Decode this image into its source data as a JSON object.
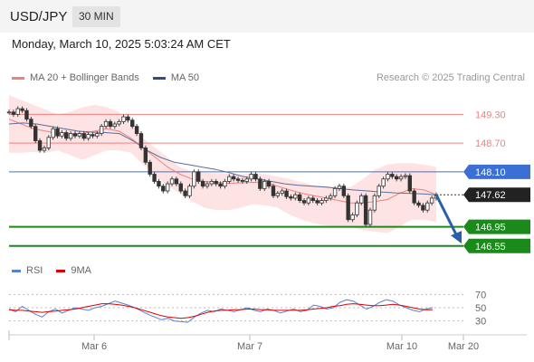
{
  "header": {
    "pair": "USD/JPY",
    "timeframe": "30 MIN"
  },
  "datetime": "Monday, March 10, 2025 5:03:24 AM CET",
  "legend_main": [
    {
      "label": "MA 20 + Bollinger Bands",
      "color": "#f08080"
    },
    {
      "label": "MA 50",
      "color": "#2b4d8a"
    }
  ],
  "credit": "Research © 2025 Trading Central",
  "legend_rsi": [
    {
      "label": "RSI",
      "color": "#5b7fd4"
    },
    {
      "label": "9MA",
      "color": "#e00000"
    }
  ],
  "colors": {
    "resistance": "#f08080",
    "pivot": "#3b6fd4",
    "support": "#1a8a1a",
    "current": "#222222",
    "arrow": "#2b5fa6",
    "band": "#fde0e0"
  },
  "chart_data": [
    {
      "type": "line",
      "title": "",
      "x_ticks": [
        "Mar 6",
        "Mar 7",
        "Mar 10",
        "Mar 20"
      ],
      "ylim": [
        146.3,
        149.8
      ],
      "grid": false,
      "levels": [
        {
          "label": "149.30",
          "value": 149.3,
          "kind": "resistance"
        },
        {
          "label": "148.70",
          "value": 148.7,
          "kind": "resistance"
        },
        {
          "label": "148.10",
          "value": 148.1,
          "kind": "pivot"
        },
        {
          "label": "147.62",
          "value": 147.62,
          "kind": "current"
        },
        {
          "label": "146.95",
          "value": 146.95,
          "kind": "support"
        },
        {
          "label": "146.55",
          "value": 146.55,
          "kind": "support"
        }
      ],
      "series": [
        {
          "name": "Price",
          "values": [
            149.35,
            149.3,
            149.42,
            149.38,
            149.2,
            149.05,
            148.75,
            148.55,
            148.6,
            148.82,
            149.0,
            148.85,
            148.92,
            148.8,
            148.9,
            148.85,
            148.9,
            148.8,
            148.88,
            148.85,
            148.9,
            149.05,
            149.15,
            149.05,
            149.1,
            149.15,
            149.25,
            149.18,
            149.05,
            148.9,
            148.6,
            148.3,
            148.05,
            147.9,
            147.8,
            147.7,
            147.85,
            147.95,
            147.85,
            147.7,
            147.6,
            147.8,
            148.1,
            147.9,
            147.8,
            147.85,
            147.9,
            147.85,
            147.8,
            147.9,
            148.0,
            147.95,
            147.92,
            147.9,
            147.95,
            148.05,
            147.95,
            147.75,
            147.9,
            147.8,
            147.6,
            147.65,
            147.7,
            147.58,
            147.55,
            147.62,
            147.5,
            147.45,
            147.55,
            147.5,
            147.45,
            147.5,
            147.55,
            147.6,
            147.75,
            147.8,
            147.6,
            147.1,
            147.2,
            147.45,
            147.6,
            147.0,
            147.3,
            147.6,
            147.8,
            147.95,
            148.05,
            148.0,
            147.95,
            148.0,
            148.02,
            147.7,
            147.45,
            147.4,
            147.3,
            147.45,
            147.55,
            147.62
          ]
        },
        {
          "name": "MA 20",
          "values": [
            149.2,
            149.1,
            149.0,
            148.95,
            148.9,
            148.88,
            148.9,
            148.95,
            149.0,
            148.95,
            148.8,
            148.6,
            148.4,
            148.2,
            148.05,
            147.95,
            147.9,
            147.88,
            147.86,
            147.87,
            147.88,
            147.87,
            147.8,
            147.72,
            147.65,
            147.6,
            147.55,
            147.5,
            147.45,
            147.45,
            147.48,
            147.52,
            147.65,
            147.75,
            147.72,
            147.62
          ]
        },
        {
          "name": "MA 50",
          "values": [
            149.1,
            149.12,
            149.1,
            149.05,
            149.0,
            148.95,
            148.93,
            148.92,
            148.9,
            148.75,
            148.55,
            148.4,
            148.3,
            148.25,
            148.2,
            148.15,
            148.08,
            148.0,
            147.95,
            147.9,
            147.85,
            147.82,
            147.8,
            147.78,
            147.75,
            147.72,
            147.7,
            147.68,
            147.66,
            147.65,
            147.64,
            147.62
          ]
        }
      ],
      "bands": {
        "upper": [
          149.7,
          149.6,
          149.5,
          149.4,
          149.3,
          149.35,
          149.45,
          149.5,
          149.45,
          149.35,
          149.1,
          148.8,
          148.6,
          148.4,
          148.2,
          148.1,
          148.08,
          148.07,
          148.06,
          148.05,
          148.06,
          148.05,
          148.0,
          147.95,
          147.88,
          147.82,
          147.8,
          147.78,
          147.78,
          147.95,
          148.15,
          148.25,
          148.28,
          148.28,
          148.25,
          148.2
        ],
        "lower": [
          148.5,
          148.5,
          148.52,
          148.5,
          148.55,
          148.45,
          148.35,
          148.45,
          148.55,
          148.55,
          148.5,
          148.25,
          148.0,
          147.8,
          147.65,
          147.48,
          147.35,
          147.3,
          147.3,
          147.35,
          147.42,
          147.4,
          147.35,
          147.2,
          147.1,
          147.02,
          146.98,
          146.95,
          146.95,
          146.88,
          146.85,
          146.82,
          146.95,
          147.1,
          147.1,
          147.05
        ]
      }
    },
    {
      "type": "line",
      "title": "",
      "ylim": [
        20,
        80
      ],
      "y_ticks": [
        {
          "label": "70",
          "value": 70
        },
        {
          "label": "50",
          "value": 50
        },
        {
          "label": "30",
          "value": 30
        }
      ],
      "series": [
        {
          "name": "RSI",
          "values": [
            48,
            44,
            52,
            46,
            40,
            36,
            44,
            48,
            42,
            46,
            50,
            48,
            46,
            50,
            52,
            56,
            60,
            57,
            54,
            50,
            45,
            40,
            36,
            32,
            34,
            30,
            29,
            28,
            36,
            42,
            46,
            44,
            48,
            46,
            44,
            47,
            50,
            46,
            44,
            48,
            46,
            42,
            45,
            48,
            44,
            46,
            54,
            52,
            48,
            50,
            58,
            62,
            60,
            54,
            48,
            52,
            58,
            62,
            60,
            54,
            50,
            46,
            44,
            48,
            50
          ]
        },
        {
          "name": "9MA",
          "values": [
            47,
            46,
            46,
            45,
            44,
            43,
            44,
            45,
            46,
            47,
            48,
            50,
            52,
            54,
            56,
            56,
            55,
            54,
            52,
            50,
            47,
            44,
            41,
            38,
            36,
            35,
            34,
            35,
            37,
            40,
            43,
            45,
            46,
            46,
            47,
            47,
            48,
            48,
            47,
            47,
            46,
            46,
            46,
            46,
            46,
            47,
            48,
            49,
            50,
            52,
            53,
            55,
            56,
            55,
            54,
            53,
            53,
            54,
            55,
            54,
            52,
            50,
            48,
            47,
            47
          ]
        }
      ]
    }
  ]
}
